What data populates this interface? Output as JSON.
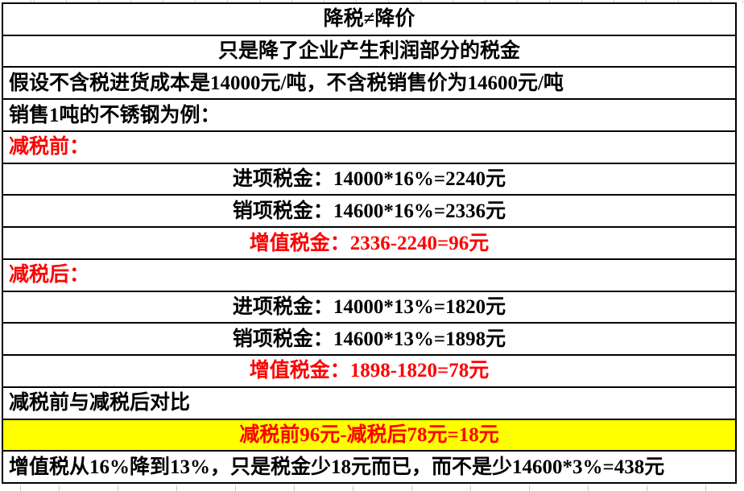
{
  "title": "降税≠降价",
  "table": {
    "rows": [
      {
        "text": "降税≠降价"
      },
      {
        "text": "只是降了企业产生利润部分的税金"
      },
      {
        "text": "假设不含税进货成本是14000元/吨，不含税销售价为14600元/吨"
      },
      {
        "text": "销售1吨的不锈钢为例："
      },
      {
        "text": "减税前："
      },
      {
        "text": "进项税金：14000*16%=2240元"
      },
      {
        "text": "销项税金：14600*16%=2336元"
      },
      {
        "text": "增值税金：2336-2240=96元"
      },
      {
        "text": "减税后："
      },
      {
        "text": "进项税金：14000*13%=1820元"
      },
      {
        "text": "销项税金：14600*13%=1898元"
      },
      {
        "text": "增值税金：1898-1820=78元"
      },
      {
        "text": "减税前与减税后对比"
      },
      {
        "text": "减税前96元-减税后78元=18元"
      },
      {
        "text": "增值税从16%降到13%，只是税金少18元而已，而不是少14600*3%=438元"
      }
    ]
  },
  "colors": {
    "accent_red": "#fe0000",
    "highlight_yellow": "#ffff00",
    "border_black": "#000000",
    "gridline_gray": "#d4d4d4"
  }
}
